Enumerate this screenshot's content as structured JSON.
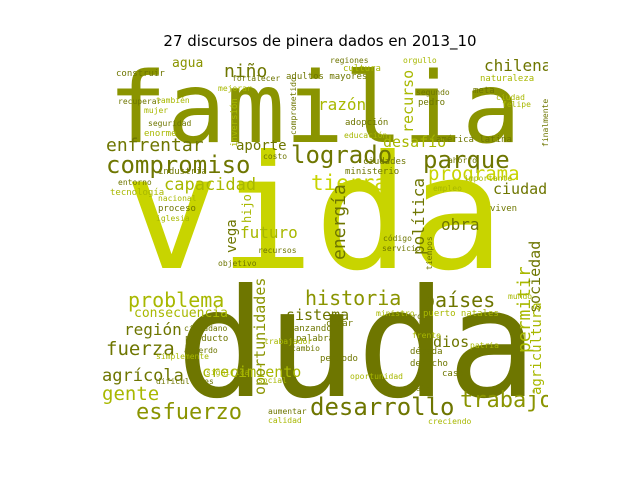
{
  "title": "27 discursos de pinera dados en 2013_10",
  "palette": {
    "bright": "#c8d400",
    "lime": "#a8b800",
    "olive": "#8a9400",
    "dark": "#6e7600"
  },
  "words": [
    {
      "text": "vida",
      "color": "#c8d400"
    },
    {
      "text": "duda",
      "color": "#6e7600"
    },
    {
      "text": "familia",
      "color": "#8a9400"
    },
    {
      "text": "compromiso",
      "color": "#6e7600"
    },
    {
      "text": "logrado",
      "color": "#6e7600"
    },
    {
      "text": "parque",
      "color": "#6e7600"
    },
    {
      "text": "programa",
      "color": "#c8d400"
    },
    {
      "text": "desarrollo",
      "color": "#6e7600"
    },
    {
      "text": "esfuerzo",
      "color": "#8a9400"
    },
    {
      "text": "trabajo",
      "color": "#8a9400"
    },
    {
      "text": "historia",
      "color": "#8a9400"
    },
    {
      "text": "países",
      "color": "#6e7600"
    },
    {
      "text": "problema",
      "color": "#a8b800"
    },
    {
      "text": "capacidad",
      "color": "#a8b800"
    },
    {
      "text": "tierra",
      "color": "#c8d400"
    },
    {
      "text": "enfrentar",
      "color": "#6e7600"
    },
    {
      "text": "niño",
      "color": "#6e7600"
    },
    {
      "text": "chilena",
      "color": "#6e7600"
    },
    {
      "text": "fuerza",
      "color": "#6e7600"
    },
    {
      "text": "gente",
      "color": "#a8b800"
    },
    {
      "text": "agrícola",
      "color": "#6e7600"
    },
    {
      "text": "región",
      "color": "#6e7600"
    },
    {
      "text": "ciudad",
      "color": "#6e7600"
    },
    {
      "text": "obra",
      "color": "#6e7600"
    },
    {
      "text": "sistema",
      "color": "#6e7600"
    },
    {
      "text": "futuro",
      "color": "#a8b800"
    },
    {
      "text": "consecuencia",
      "color": "#a8b800"
    },
    {
      "text": "aporte",
      "color": "#6e7600"
    },
    {
      "text": "desafío",
      "color": "#a8b800"
    },
    {
      "text": "agua",
      "color": "#8a9400"
    },
    {
      "text": "razón",
      "color": "#a8b800"
    },
    {
      "text": "dios",
      "color": "#6e7600"
    },
    {
      "text": "crecimiento",
      "color": "#a8b800"
    },
    {
      "text": "oportunidades",
      "color": "#8a9400"
    },
    {
      "text": "energía",
      "color": "#6e7600"
    },
    {
      "text": "política",
      "color": "#6e7600"
    },
    {
      "text": "permitir",
      "color": "#a8b800"
    },
    {
      "text": "sociedad",
      "color": "#6e7600"
    },
    {
      "text": "agricultura",
      "color": "#a8b800"
    },
    {
      "text": "recurso",
      "color": "#a8b800"
    },
    {
      "text": "vega",
      "color": "#6e7600"
    },
    {
      "text": "hijo",
      "color": "#a8b800"
    },
    {
      "text": "industria",
      "color": "#6e7600"
    },
    {
      "text": "proceso",
      "color": "#6e7600"
    },
    {
      "text": "tecnología",
      "color": "#a8b800"
    },
    {
      "text": "entorno",
      "color": "#6e7600"
    },
    {
      "text": "ciudades",
      "color": "#6e7600"
    },
    {
      "text": "ministerio",
      "color": "#6e7600"
    },
    {
      "text": "educación",
      "color": "#a8b800"
    },
    {
      "text": "américa latina",
      "color": "#6e7600"
    },
    {
      "text": "ahorro",
      "color": "#6e7600"
    },
    {
      "text": "adultos mayores",
      "color": "#6e7600"
    },
    {
      "text": "regiones",
      "color": "#6e7600"
    },
    {
      "text": "cultura",
      "color": "#a8b800"
    },
    {
      "text": "construir",
      "color": "#6e7600"
    },
    {
      "text": "recuperar",
      "color": "#6e7600"
    },
    {
      "text": "mujer",
      "color": "#a8b800"
    },
    {
      "text": "seguridad",
      "color": "#6e7600"
    },
    {
      "text": "enorme",
      "color": "#a8b800"
    },
    {
      "text": "fortalecer",
      "color": "#6e7600"
    },
    {
      "text": "inversión",
      "color": "#a8b800"
    },
    {
      "text": "adopción",
      "color": "#6e7600"
    },
    {
      "text": "naturaleza",
      "color": "#a8b800"
    },
    {
      "text": "meta",
      "color": "#6e7600"
    },
    {
      "text": "pedro",
      "color": "#6e7600"
    },
    {
      "text": "tiempos",
      "color": "#6e7600"
    },
    {
      "text": "producto",
      "color": "#6e7600"
    },
    {
      "text": "ciudadano",
      "color": "#6e7600"
    },
    {
      "text": "avanzando",
      "color": "#6e7600"
    },
    {
      "text": "centro",
      "color": "#6e7600"
    },
    {
      "text": "puerto natales",
      "color": "#a8b800"
    },
    {
      "text": "ministro",
      "color": "#a8b800"
    },
    {
      "text": "década",
      "color": "#6e7600"
    },
    {
      "text": "derecho",
      "color": "#6e7600"
    },
    {
      "text": "caso",
      "color": "#6e7600"
    },
    {
      "text": "año",
      "color": "#6e7600"
    },
    {
      "text": "período",
      "color": "#6e7600"
    },
    {
      "text": "palabra",
      "color": "#6e7600"
    },
    {
      "text": "cambio",
      "color": "#6e7600"
    },
    {
      "text": "crear",
      "color": "#6e7600"
    },
    {
      "text": "calidad",
      "color": "#a8b800"
    },
    {
      "text": "aumentar",
      "color": "#6e7600"
    },
    {
      "text": "creciendo",
      "color": "#a8b800"
    },
    {
      "text": "dificultades",
      "color": "#6e7600"
    },
    {
      "text": "simplemente",
      "color": "#a8b800"
    },
    {
      "text": "objetivo",
      "color": "#6e7600"
    },
    {
      "text": "código",
      "color": "#6e7600"
    },
    {
      "text": "servicio",
      "color": "#6e7600"
    },
    {
      "text": "viven",
      "color": "#6e7600"
    },
    {
      "text": "empleo",
      "color": "#a8b800"
    },
    {
      "text": "finalmente",
      "color": "#6e7600"
    },
    {
      "text": "trabajador",
      "color": "#a8b800"
    },
    {
      "text": "mundo",
      "color": "#a8b800"
    },
    {
      "text": "iglesia",
      "color": "#a8b800"
    },
    {
      "text": "oportunidad",
      "color": "#a8b800"
    },
    {
      "text": "costo",
      "color": "#6e7600"
    },
    {
      "text": "comprometido",
      "color": "#6e7600"
    },
    {
      "text": "orgullo",
      "color": "#a8b800"
    },
    {
      "text": "acuerdo",
      "color": "#6e7600"
    },
    {
      "text": "importante",
      "color": "#a8b800"
    },
    {
      "text": "significa",
      "color": "#a8b800"
    },
    {
      "text": "también",
      "color": "#a8b800"
    },
    {
      "text": "felipe",
      "color": "#a8b800"
    },
    {
      "text": "patria",
      "color": "#a8b800"
    },
    {
      "text": "nacional",
      "color": "#a8b800"
    },
    {
      "text": "frente",
      "color": "#a8b800"
    },
    {
      "text": "mejorar",
      "color": "#a8b800"
    },
    {
      "text": "segundo",
      "color": "#6e7600"
    },
    {
      "text": "recursos",
      "color": "#6e7600"
    },
    {
      "text": "ciudad",
      "color": "#a8b800"
    },
    {
      "text": "social",
      "color": "#a8b800"
    }
  ]
}
